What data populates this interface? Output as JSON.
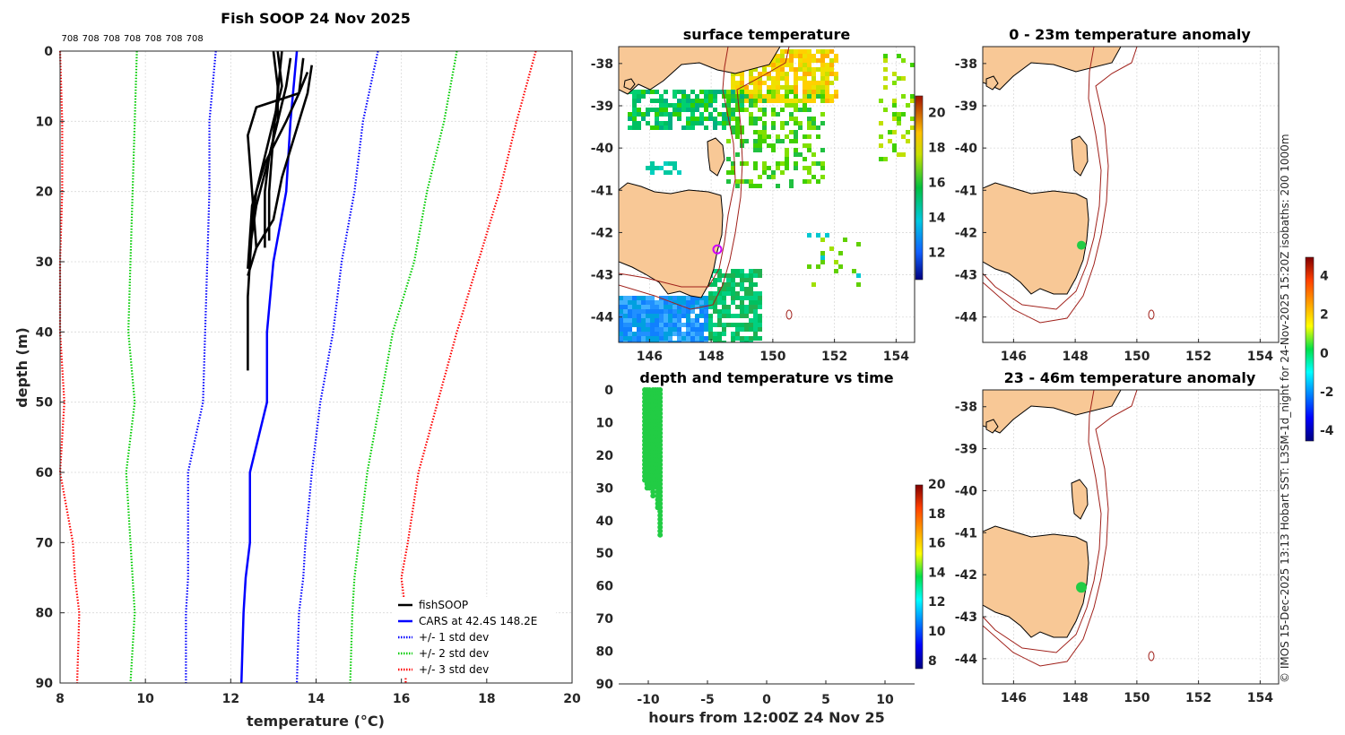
{
  "chart_data": [
    {
      "id": "profile",
      "type": "line",
      "title": "Fish SOOP 24 Nov 2025",
      "xlabel": "temperature (°C)",
      "ylabel": "depth (m)",
      "xlim": [
        8,
        20
      ],
      "ylim": [
        0,
        90
      ],
      "y_reversed": true,
      "xticks": [
        8,
        10,
        12,
        14,
        16,
        18,
        20
      ],
      "yticks": [
        0,
        10,
        20,
        30,
        40,
        50,
        60,
        70,
        80,
        90
      ],
      "top_labels": [
        "708",
        "708",
        "708",
        "708",
        "708",
        "708",
        "708"
      ],
      "legend": [
        "fishSOOP",
        "CARS at 42.4S 148.2E",
        "+/- 1 std dev",
        "+/- 2 std dev",
        "+/- 3 std dev"
      ],
      "colors": {
        "fishsoop": "#000000",
        "cars": "#0000ff",
        "sd1": "#0000ff",
        "sd2": "#00cc00",
        "sd3": "#ff0000"
      },
      "cars_depth": [
        0,
        10,
        20,
        30,
        40,
        50,
        60,
        70,
        75,
        80,
        90
      ],
      "cars_mean": [
        13.55,
        13.4,
        13.3,
        13.0,
        12.85,
        12.85,
        12.45,
        12.45,
        12.35,
        12.3,
        12.25
      ],
      "std_dev_lines": [
        {
          "name": "+3 std dev",
          "color": "#ff0000",
          "values": [
            19.15,
            18.7,
            18.3,
            17.8,
            17.3,
            16.85,
            16.4,
            16.15,
            16.0,
            16.1,
            16.1
          ]
        },
        {
          "name": "+2 std dev",
          "color": "#00cc00",
          "values": [
            17.3,
            17.0,
            16.6,
            16.3,
            15.8,
            15.5,
            15.2,
            15.0,
            14.9,
            14.85,
            14.8
          ]
        },
        {
          "name": "+1 std dev",
          "color": "#0000ff",
          "values": [
            15.45,
            15.1,
            14.9,
            14.6,
            14.4,
            14.1,
            13.9,
            13.75,
            13.7,
            13.6,
            13.55
          ]
        },
        {
          "name": "-1 std dev",
          "color": "#0000ff",
          "values": [
            11.65,
            11.5,
            11.5,
            11.45,
            11.4,
            11.35,
            11.0,
            11.0,
            11.0,
            10.95,
            10.95
          ]
        },
        {
          "name": "-2 std dev",
          "color": "#00cc00",
          "values": [
            9.8,
            9.75,
            9.7,
            9.65,
            9.6,
            9.75,
            9.55,
            9.65,
            9.7,
            9.75,
            9.65
          ]
        },
        {
          "name": "-3 std dev",
          "color": "#ff0000",
          "values": [
            8.0,
            8.05,
            8.05,
            8.0,
            8.0,
            8.1,
            8.0,
            8.3,
            8.35,
            8.45,
            8.4
          ]
        }
      ],
      "fishsoop_profiles": [
        {
          "temps": [
            13.1,
            13.2,
            13.0,
            12.8,
            12.6,
            12.5,
            12.45,
            12.4,
            12.4
          ],
          "depths": [
            0,
            5,
            10,
            15,
            20,
            25,
            30,
            35,
            45.5
          ]
        },
        {
          "temps": [
            13.0,
            13.1,
            13.1,
            12.9,
            12.8,
            12.8
          ],
          "depths": [
            0,
            5,
            10,
            15,
            20,
            28
          ]
        },
        {
          "temps": [
            13.2,
            13.1,
            13.0,
            12.9,
            12.9
          ],
          "depths": [
            0,
            6,
            12,
            20,
            27
          ]
        },
        {
          "temps": [
            13.9,
            13.8,
            13.5,
            13.2,
            13.0,
            12.6,
            12.4
          ],
          "depths": [
            2,
            6,
            12,
            18,
            24,
            28,
            32
          ]
        },
        {
          "temps": [
            13.7,
            13.6,
            13.3,
            12.8,
            12.5,
            12.4
          ],
          "depths": [
            1,
            6,
            10,
            16,
            22,
            31
          ]
        },
        {
          "temps": [
            13.8,
            13.6,
            12.6,
            12.4,
            12.5,
            12.6
          ],
          "depths": [
            3,
            6,
            8,
            12,
            20,
            28
          ]
        },
        {
          "temps": [
            13.4,
            13.3,
            13.1,
            12.9,
            12.6,
            12.45
          ],
          "depths": [
            1,
            5,
            10,
            15,
            22,
            28
          ]
        }
      ]
    },
    {
      "id": "sst",
      "type": "heatmap",
      "title": "surface temperature",
      "xticks": [
        146,
        148,
        150,
        152,
        154
      ],
      "yticks": [
        -38,
        -39,
        -40,
        -41,
        -42,
        -43,
        -44
      ],
      "xlim": [
        145,
        154.6
      ],
      "ylim": [
        -44.6,
        -37.6
      ],
      "colorbar": {
        "ticks": [
          12,
          14,
          16,
          18,
          20
        ],
        "range": [
          10.5,
          21
        ]
      },
      "marker": {
        "lon": 148.2,
        "lat": -42.4,
        "color": "#cc00ff"
      }
    },
    {
      "id": "time",
      "type": "scatter",
      "title": "depth and temperature vs time",
      "xlabel": "hours from 12:00Z 24 Nov 25",
      "xlim": [
        -12.5,
        12.5
      ],
      "ylim": [
        0,
        90
      ],
      "y_reversed": true,
      "xticks": [
        -10,
        -5,
        0,
        5,
        10
      ],
      "yticks": [
        0,
        10,
        20,
        30,
        40,
        50,
        60,
        70,
        80,
        90
      ],
      "colorbar": {
        "ticks": [
          8,
          10,
          12,
          14,
          16,
          18,
          20
        ],
        "range": [
          7.5,
          20
        ]
      },
      "point_color": "#22cc44",
      "casts": [
        {
          "hours": -10.3,
          "max_depth": 28
        },
        {
          "hours": -10.1,
          "max_depth": 31
        },
        {
          "hours": -9.9,
          "max_depth": 30
        },
        {
          "hours": -9.6,
          "max_depth": 33
        },
        {
          "hours": -9.4,
          "max_depth": 29
        },
        {
          "hours": -9.2,
          "max_depth": 36
        },
        {
          "hours": -9.0,
          "max_depth": 45
        }
      ]
    },
    {
      "id": "anom1",
      "type": "heatmap",
      "title": "0 - 23m temperature anomaly",
      "xticks": [
        146,
        148,
        150,
        152,
        154
      ],
      "yticks": [
        -38,
        -39,
        -40,
        -41,
        -42,
        -43,
        -44
      ],
      "xlim": [
        145,
        154.6
      ],
      "ylim": [
        -44.6,
        -37.6
      ],
      "point": {
        "lon": 148.2,
        "lat": -42.3,
        "color": "#22cc44"
      }
    },
    {
      "id": "anom2",
      "type": "heatmap",
      "title": "23 - 46m temperature anomaly",
      "xticks": [
        146,
        148,
        150,
        152,
        154
      ],
      "yticks": [
        -38,
        -39,
        -40,
        -41,
        -42,
        -43,
        -44
      ],
      "xlim": [
        145,
        154.6
      ],
      "ylim": [
        -44.6,
        -37.6
      ],
      "point": {
        "lon": 148.2,
        "lat": -42.3,
        "color": "#22cc44"
      },
      "colorbar": {
        "ticks": [
          4,
          2,
          0,
          -2,
          -4
        ],
        "range": [
          -4.5,
          5
        ]
      }
    }
  ],
  "side_note": "© IMOS 15-Dec-2025 13:13 Hobart SST: L3SM-1d_night for 24-Nov-2025 15:20Z isobaths: 200  1000m"
}
